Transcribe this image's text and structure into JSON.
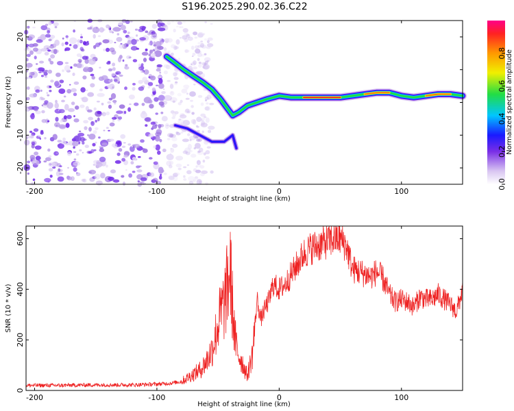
{
  "title": "S196.2025.290.02.36.C22",
  "chart_data": [
    {
      "type": "heatmap",
      "name": "spectrogram",
      "xlabel": "Height of straight line (km)",
      "ylabel": "Frequency (Hz)",
      "xlim": [
        -207,
        150
      ],
      "ylim": [
        -25,
        25
      ],
      "xticks": [
        -200,
        -100,
        0,
        100
      ],
      "yticks": [
        -20,
        -10,
        0,
        10,
        20
      ],
      "colorbar": {
        "label": "Normalized spectral amplitude",
        "range": [
          0,
          1
        ],
        "ticks": [
          0.0,
          0.2,
          0.4,
          0.6,
          0.8
        ]
      },
      "ridge": [
        {
          "x": -92,
          "y": 14
        },
        {
          "x": -85,
          "y": 12
        },
        {
          "x": -78,
          "y": 10
        },
        {
          "x": -70,
          "y": 8
        },
        {
          "x": -62,
          "y": 6
        },
        {
          "x": -55,
          "y": 4
        },
        {
          "x": -48,
          "y": 1
        },
        {
          "x": -42,
          "y": -2
        },
        {
          "x": -38,
          "y": -4
        },
        {
          "x": -33,
          "y": -3
        },
        {
          "x": -26,
          "y": -1
        },
        {
          "x": -18,
          "y": 0
        },
        {
          "x": -10,
          "y": 1
        },
        {
          "x": 0,
          "y": 2
        },
        {
          "x": 10,
          "y": 1.5
        },
        {
          "x": 20,
          "y": 1.5
        },
        {
          "x": 30,
          "y": 1.5
        },
        {
          "x": 40,
          "y": 1.5
        },
        {
          "x": 50,
          "y": 1.5
        },
        {
          "x": 60,
          "y": 2
        },
        {
          "x": 70,
          "y": 2.5
        },
        {
          "x": 80,
          "y": 3
        },
        {
          "x": 90,
          "y": 3
        },
        {
          "x": 100,
          "y": 2
        },
        {
          "x": 110,
          "y": 1.5
        },
        {
          "x": 120,
          "y": 2
        },
        {
          "x": 130,
          "y": 2.5
        },
        {
          "x": 140,
          "y": 2.5
        },
        {
          "x": 150,
          "y": 2
        }
      ],
      "lower_branch": [
        {
          "x": -85,
          "y": -7
        },
        {
          "x": -75,
          "y": -8
        },
        {
          "x": -65,
          "y": -10
        },
        {
          "x": -55,
          "y": -12
        },
        {
          "x": -45,
          "y": -12
        },
        {
          "x": -38,
          "y": -10
        },
        {
          "x": -35,
          "y": -14
        }
      ]
    },
    {
      "type": "line",
      "name": "snr",
      "xlabel": "Height of straight line (km)",
      "ylabel": "SNR (10 * v/v)",
      "xlim": [
        -207,
        150
      ],
      "ylim": [
        0,
        650
      ],
      "xticks": [
        -200,
        -100,
        0,
        100
      ],
      "yticks": [
        0,
        200,
        400,
        600
      ],
      "color": "#ee2222",
      "series": [
        {
          "name": "SNR",
          "x": [
            -207,
            -180,
            -150,
            -120,
            -100,
            -90,
            -80,
            -75,
            -70,
            -65,
            -60,
            -55,
            -50,
            -48,
            -45,
            -42,
            -40,
            -38,
            -36,
            -34,
            -32,
            -30,
            -28,
            -26,
            -24,
            -22,
            -20,
            -18,
            -15,
            -12,
            -10,
            -8,
            -5,
            0,
            5,
            10,
            15,
            20,
            25,
            30,
            35,
            40,
            45,
            50,
            55,
            60,
            65,
            70,
            75,
            80,
            85,
            90,
            95,
            100,
            105,
            110,
            115,
            120,
            125,
            130,
            135,
            140,
            145,
            150
          ],
          "y": [
            20,
            20,
            22,
            22,
            25,
            28,
            35,
            50,
            65,
            80,
            110,
            160,
            260,
            300,
            340,
            420,
            480,
            320,
            200,
            150,
            130,
            110,
            80,
            60,
            100,
            140,
            250,
            360,
            280,
            320,
            340,
            360,
            420,
            400,
            420,
            460,
            500,
            540,
            560,
            570,
            580,
            590,
            600,
            600,
            570,
            480,
            470,
            460,
            450,
            470,
            440,
            380,
            350,
            360,
            350,
            330,
            370,
            360,
            360,
            380,
            360,
            340,
            310,
            400
          ]
        }
      ]
    }
  ]
}
